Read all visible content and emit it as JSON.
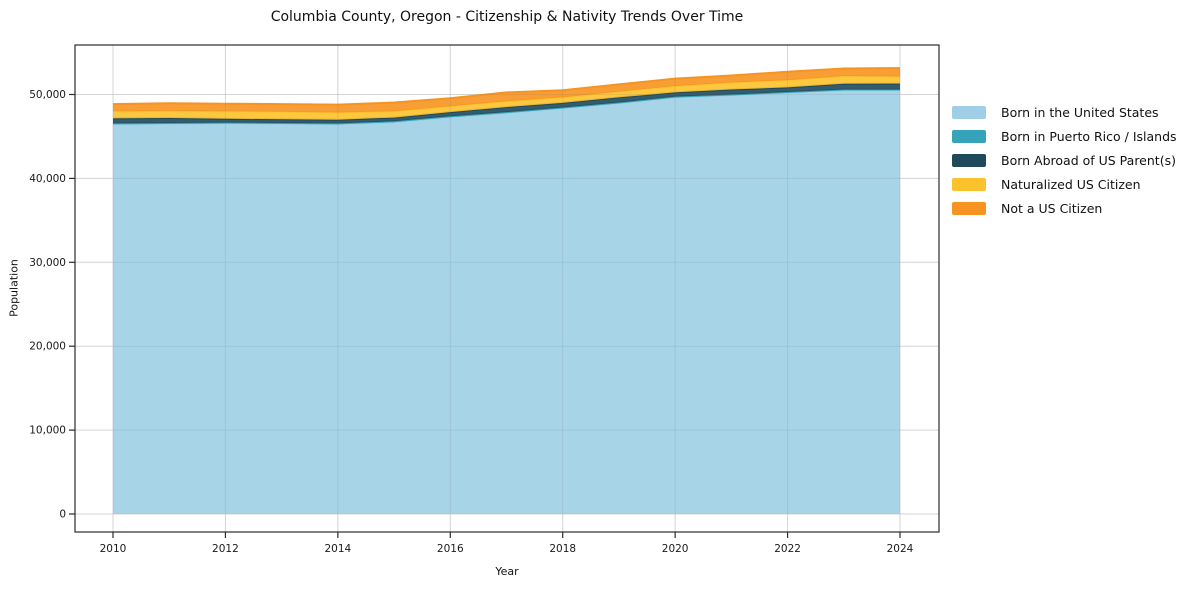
{
  "chart_data": {
    "type": "area",
    "stacked": true,
    "title": "Columbia County, Oregon - Citizenship & Nativity Trends Over Time",
    "xlabel": "Year",
    "ylabel": "Population",
    "x": [
      2010,
      2011,
      2012,
      2013,
      2014,
      2015,
      2016,
      2017,
      2018,
      2019,
      2020,
      2021,
      2022,
      2023,
      2024
    ],
    "series": [
      {
        "name": "Born in the United States",
        "color": "#9ecfe6",
        "values": [
          46450,
          46500,
          46550,
          46500,
          46450,
          46700,
          47300,
          47800,
          48350,
          48950,
          49650,
          49900,
          50200,
          50500,
          50500
        ]
      },
      {
        "name": "Born in Puerto Rico / Islands",
        "color": "#35a3b9",
        "values": [
          100,
          100,
          100,
          100,
          100,
          100,
          100,
          100,
          100,
          100,
          100,
          100,
          100,
          100,
          100
        ]
      },
      {
        "name": "Born Abroad of US Parent(s)",
        "color": "#1f4a5c",
        "values": [
          600,
          600,
          450,
          450,
          450,
          450,
          500,
          600,
          550,
          600,
          500,
          600,
          550,
          670,
          700
        ]
      },
      {
        "name": "Naturalized US Citizen",
        "color": "#fcc22d",
        "values": [
          850,
          850,
          900,
          900,
          850,
          750,
          700,
          700,
          650,
          700,
          750,
          830,
          850,
          930,
          850
        ]
      },
      {
        "name": "Not a US Citizen",
        "color": "#f79320",
        "values": [
          850,
          900,
          900,
          900,
          950,
          1050,
          950,
          1050,
          850,
          850,
          900,
          840,
          1000,
          900,
          1000
        ]
      }
    ],
    "xticks": {
      "values": [
        2010,
        2012,
        2014,
        2016,
        2018,
        2020,
        2022,
        2024
      ],
      "labels": [
        "2010",
        "2012",
        "2014",
        "2016",
        "2018",
        "2020",
        "2022",
        "2024"
      ]
    },
    "yticks": {
      "values": [
        0,
        10000,
        20000,
        30000,
        40000,
        50000
      ],
      "labels": [
        "0",
        "10,000",
        "20,000",
        "30,000",
        "40,000",
        "50,000"
      ]
    },
    "xlim": [
      2010,
      2024
    ],
    "ylim": [
      0,
      55900
    ],
    "grid": true,
    "legend_position": "right",
    "grid_color": "#e3e3e3",
    "spine_color": "#2b2b2b",
    "tick_label_color": "#1a1a1a"
  }
}
